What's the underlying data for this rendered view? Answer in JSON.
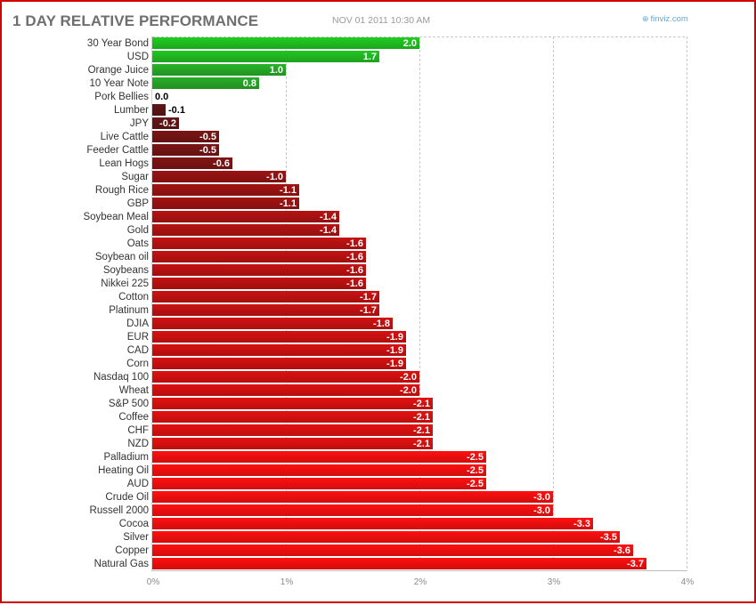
{
  "header": {
    "title": "1 DAY RELATIVE PERFORMANCE",
    "datetime": "NOV 01 2011 10:30 AM",
    "brand": "finviz.com",
    "brand_icon": "globe-icon"
  },
  "colors": {
    "positive": "#21cc21",
    "positive_dark": "#2f9a2f",
    "negative": "#ff1010",
    "negative_dark": "#5a1616",
    "frame": "#d40000"
  },
  "chart_data": {
    "type": "bar",
    "orientation": "horizontal",
    "title": "1 DAY RELATIVE PERFORMANCE",
    "xlabel": "",
    "ylabel": "",
    "xlim": [
      0,
      4
    ],
    "x_ticks": [
      "0%",
      "1%",
      "2%",
      "3%",
      "4%"
    ],
    "grid": true,
    "bar_length": "absolute value",
    "categories": [
      "30 Year Bond",
      "USD",
      "Orange Juice",
      "10 Year Note",
      "Pork Bellies",
      "Lumber",
      "JPY",
      "Live Cattle",
      "Feeder Cattle",
      "Lean Hogs",
      "Sugar",
      "Rough Rice",
      "GBP",
      "Soybean Meal",
      "Gold",
      "Oats",
      "Soybean oil",
      "Soybeans",
      "Nikkei 225",
      "Cotton",
      "Platinum",
      "DJIA",
      "EUR",
      "CAD",
      "Corn",
      "Nasdaq 100",
      "Wheat",
      "S&P 500",
      "Coffee",
      "CHF",
      "NZD",
      "Palladium",
      "Heating Oil",
      "AUD",
      "Crude Oil",
      "Russell 2000",
      "Cocoa",
      "Silver",
      "Copper",
      "Natural Gas"
    ],
    "values": [
      2.0,
      1.7,
      1.0,
      0.8,
      0.0,
      -0.1,
      -0.2,
      -0.5,
      -0.5,
      -0.6,
      -1.0,
      -1.1,
      -1.1,
      -1.4,
      -1.4,
      -1.6,
      -1.6,
      -1.6,
      -1.6,
      -1.7,
      -1.7,
      -1.8,
      -1.9,
      -1.9,
      -1.9,
      -2.0,
      -2.0,
      -2.1,
      -2.1,
      -2.1,
      -2.1,
      -2.5,
      -2.5,
      -2.5,
      -3.0,
      -3.0,
      -3.3,
      -3.5,
      -3.6,
      -3.7
    ],
    "data_labels": [
      "2.0",
      "1.7",
      "1.0",
      "0.8",
      "0.0",
      "-0.1",
      "-0.2",
      "-0.5",
      "-0.5",
      "-0.6",
      "-1.0",
      "-1.1",
      "-1.1",
      "-1.4",
      "-1.4",
      "-1.6",
      "-1.6",
      "-1.6",
      "-1.6",
      "-1.7",
      "-1.7",
      "-1.8",
      "-1.9",
      "-1.9",
      "-1.9",
      "-2.0",
      "-2.0",
      "-2.1",
      "-2.1",
      "-2.1",
      "-2.1",
      "-2.5",
      "-2.5",
      "-2.5",
      "-3.0",
      "-3.0",
      "-3.3",
      "-3.5",
      "-3.6",
      "-3.7"
    ]
  }
}
